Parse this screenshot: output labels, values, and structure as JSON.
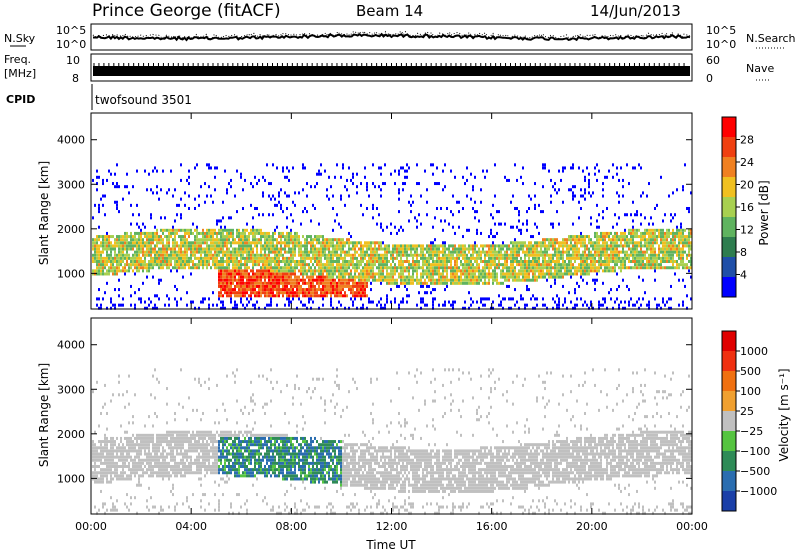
{
  "header": {
    "station": "Prince George (fitACF)",
    "beam": "Beam 14",
    "date": "14/Jun/2013"
  },
  "noise_panel": {
    "left_label": "N.Sky",
    "right_label": "N.Search",
    "tick_top": "10^5",
    "tick_bottom": "10^0"
  },
  "freq_panel": {
    "left_label_line1": "Freq.",
    "left_label_line2": "[MHz]",
    "right_label": "Nave",
    "left_tick_top": "10",
    "left_tick_bottom": "8",
    "right_tick_top": "60",
    "right_tick_bottom": "0"
  },
  "cpid_panel": {
    "label": "CPID",
    "value": "twofsound 3501"
  },
  "power_panel": {
    "ylabel": "Slant Range [km]",
    "yticks": [
      "4000",
      "3000",
      "2000",
      "1000"
    ],
    "colorbar_label": "Power [dB]",
    "colorbar_ticks": [
      "28",
      "24",
      "20",
      "16",
      "12",
      "8",
      "4"
    ],
    "colors": [
      "#0000ff",
      "#1f4fa8",
      "#2e7d4f",
      "#5fb35f",
      "#a8d050",
      "#f0c020",
      "#f08020",
      "#f04010",
      "#ff0000"
    ]
  },
  "velocity_panel": {
    "ylabel": "Slant Range [km]",
    "yticks": [
      "4000",
      "3000",
      "2000",
      "1000"
    ],
    "colorbar_label": "Velocity [m s⁻¹]",
    "colorbar_ticks": [
      "1000",
      "500",
      "100",
      "25",
      "−25",
      "−100",
      "−500",
      "−1000"
    ],
    "colors": [
      "#1a3fa8",
      "#2a6db0",
      "#2e8b57",
      "#55c440",
      "#c0c0c0",
      "#f0a030",
      "#f07010",
      "#f03010",
      "#e00000"
    ]
  },
  "x_axis": {
    "ticks": [
      "00:00",
      "04:00",
      "08:00",
      "12:00",
      "16:00",
      "20:00",
      "00:00"
    ],
    "label": "Time UT"
  },
  "chart_data": {
    "type": "heatmap",
    "x_range_hours": [
      0,
      24
    ],
    "y_range_km": [
      200,
      4600
    ],
    "panels": [
      "Power [dB]",
      "Velocity [m s⁻¹]"
    ]
  }
}
